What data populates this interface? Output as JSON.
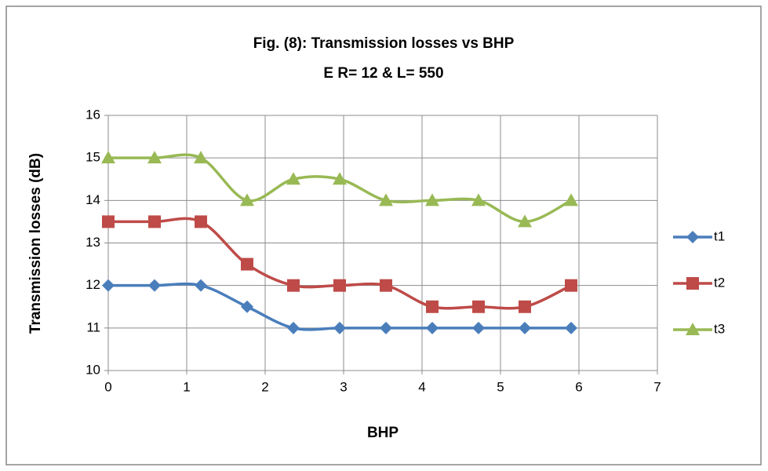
{
  "chart_data": {
    "type": "line",
    "title": "Fig. (8): Transmission losses vs BHP",
    "subtitle": "E R= 12 & L= 550",
    "x_label": "BHP",
    "y_label": "Transmission losses (dB)",
    "x": [
      0,
      0.59,
      1.18,
      1.77,
      2.36,
      2.95,
      3.54,
      4.13,
      4.72,
      5.31,
      5.9
    ],
    "series": [
      {
        "name": "t1",
        "color": "#4a7ebb",
        "marker": "diamond",
        "values": [
          12,
          12,
          12,
          11.5,
          11,
          11,
          11,
          11,
          11,
          11,
          11
        ]
      },
      {
        "name": "t2",
        "color": "#be4b48",
        "marker": "square",
        "values": [
          13.5,
          13.5,
          13.5,
          12.5,
          12,
          12,
          12,
          11.5,
          11.5,
          11.5,
          12
        ]
      },
      {
        "name": "t3",
        "color": "#98b954",
        "marker": "triangle",
        "values": [
          15,
          15,
          15,
          14,
          14.5,
          14.5,
          14,
          14,
          14,
          13.5,
          14
        ]
      }
    ],
    "xlim": [
      0,
      7
    ],
    "xticks": [
      0,
      1,
      2,
      3,
      4,
      5,
      6,
      7
    ],
    "ylim": [
      10,
      16
    ],
    "yticks": [
      10,
      11,
      12,
      13,
      14,
      15,
      16
    ],
    "grid": true,
    "smooth": true,
    "legend": "right"
  }
}
